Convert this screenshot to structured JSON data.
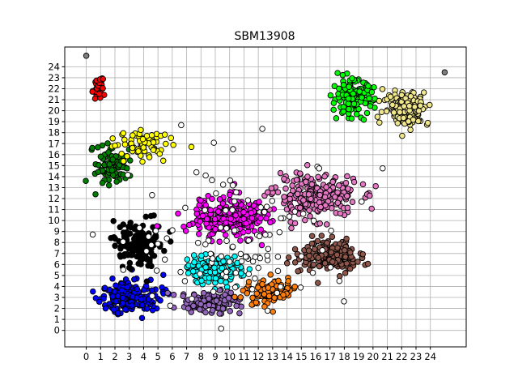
{
  "chart_data": {
    "type": "scatter",
    "title": "SBM13908",
    "xlabel": "",
    "ylabel": "",
    "xlim": [
      -1.5,
      26.5
    ],
    "ylim": [
      -1.5,
      25.8
    ],
    "grid": true,
    "legend": "none",
    "x_ticks": [
      0,
      1,
      2,
      3,
      4,
      5,
      6,
      7,
      8,
      9,
      10,
      11,
      12,
      13,
      14,
      15,
      16,
      17,
      18,
      19,
      20,
      21,
      22,
      23,
      24
    ],
    "y_ticks": [
      0,
      1,
      2,
      3,
      4,
      5,
      6,
      7,
      8,
      9,
      10,
      11,
      12,
      13,
      14,
      15,
      16,
      17,
      18,
      19,
      20,
      21,
      22,
      23,
      24
    ],
    "marker": "circle",
    "marker_edge_color": "#000000",
    "clusters": [
      {
        "color": "#0000ff",
        "center": [
          3.0,
          3.0
        ],
        "spread": [
          1.7,
          1.3
        ],
        "count": 180
      },
      {
        "color": "#000000",
        "center": [
          3.8,
          7.8
        ],
        "spread": [
          1.5,
          1.6
        ],
        "count": 170
      },
      {
        "color": "#008000",
        "center": [
          1.8,
          15.0
        ],
        "spread": [
          0.9,
          1.5
        ],
        "count": 90
      },
      {
        "color": "#ffff00",
        "center": [
          3.8,
          17.0
        ],
        "spread": [
          1.8,
          1.3
        ],
        "count": 70
      },
      {
        "color": "#ff0000",
        "center": [
          0.8,
          22.0
        ],
        "spread": [
          0.4,
          1.0
        ],
        "count": 30
      },
      {
        "color": "#ff00ff",
        "center": [
          10.0,
          10.3
        ],
        "spread": [
          2.1,
          1.6
        ],
        "count": 260
      },
      {
        "color": "#00ffff",
        "center": [
          9.0,
          5.5
        ],
        "spread": [
          1.7,
          1.0
        ],
        "count": 140
      },
      {
        "color": "#9467bd",
        "center": [
          8.5,
          2.6
        ],
        "spread": [
          1.8,
          0.8
        ],
        "count": 120
      },
      {
        "color": "#ff7f0e",
        "center": [
          12.8,
          3.5
        ],
        "spread": [
          1.3,
          1.0
        ],
        "count": 110
      },
      {
        "color": "#8c564b",
        "center": [
          17.0,
          6.8
        ],
        "spread": [
          1.7,
          1.1
        ],
        "count": 200
      },
      {
        "color": "#e377c2",
        "center": [
          16.0,
          12.2
        ],
        "spread": [
          2.4,
          1.6
        ],
        "count": 240
      },
      {
        "color": "#00ff00",
        "center": [
          18.6,
          21.2
        ],
        "spread": [
          1.2,
          1.3
        ],
        "count": 150
      },
      {
        "color": "#f0e68c",
        "center": [
          22.3,
          20.3
        ],
        "spread": [
          1.3,
          1.3
        ],
        "count": 150
      },
      {
        "color": "#ffffff",
        "center": [
          11.0,
          8.5
        ],
        "spread": [
          6.5,
          6.0
        ],
        "count": 110
      }
    ],
    "isolated_points": [
      {
        "x": 0,
        "y": 25.0,
        "color": "#808080"
      },
      {
        "x": 25.0,
        "y": 23.5,
        "color": "#808080"
      }
    ]
  }
}
